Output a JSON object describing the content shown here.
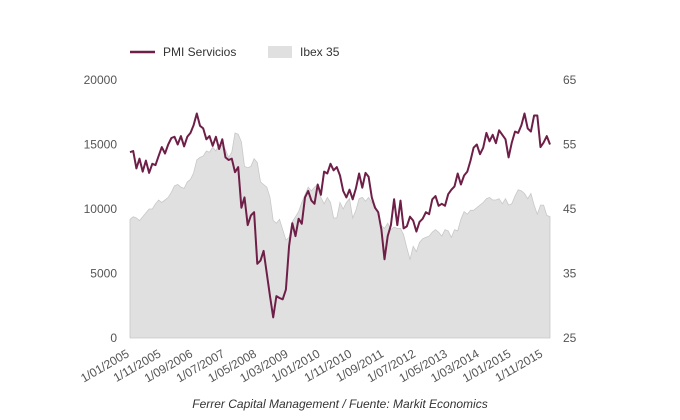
{
  "chart_data": {
    "type": "line",
    "title": "",
    "source_text": "Ferrer Capital Management / Fuente: Markit Economics",
    "legend": {
      "placement": "top-left"
    },
    "grid": false,
    "x_tick_labels": [
      "1/01/2005",
      "1/11/2005",
      "1/09/2006",
      "1/07/2007",
      "1/05/2008",
      "1/03/2009",
      "1/01/2010",
      "1/11/2010",
      "1/09/2011",
      "1/07/2012",
      "1/05/2013",
      "1/03/2014",
      "1/01/2015",
      "1/11/2015"
    ],
    "x_range": [
      "2005-01",
      "2015-12"
    ],
    "y_left": {
      "ticks": [
        "0",
        "5000",
        "10000",
        "15000",
        "20000"
      ],
      "range": [
        0,
        20000
      ]
    },
    "y_right": {
      "ticks": [
        "25",
        "35",
        "45",
        "55",
        "65"
      ],
      "range": [
        25,
        65
      ]
    },
    "colors": {
      "pmi": "#6e1f47",
      "ibex_fill": "#e0e0e0",
      "ibex_line": "#c8c8c8"
    },
    "series": [
      {
        "name": "PMI Servicios",
        "axis": "right",
        "style": "line",
        "points": [
          [
            "2005-01",
            53.8
          ],
          [
            "2005-02",
            54.0
          ],
          [
            "2005-03",
            51.3
          ],
          [
            "2005-04",
            52.8
          ],
          [
            "2005-05",
            50.8
          ],
          [
            "2005-06",
            52.5
          ],
          [
            "2005-07",
            50.6
          ],
          [
            "2005-08",
            52.0
          ],
          [
            "2005-09",
            51.8
          ],
          [
            "2005-10",
            53.2
          ],
          [
            "2005-11",
            54.6
          ],
          [
            "2005-12",
            53.6
          ],
          [
            "2006-01",
            55.0
          ],
          [
            "2006-02",
            56.0
          ],
          [
            "2006-03",
            56.2
          ],
          [
            "2006-04",
            55.0
          ],
          [
            "2006-05",
            56.3
          ],
          [
            "2006-06",
            54.7
          ],
          [
            "2006-07",
            56.2
          ],
          [
            "2006-08",
            56.8
          ],
          [
            "2006-09",
            58.0
          ],
          [
            "2006-10",
            59.8
          ],
          [
            "2006-11",
            57.9
          ],
          [
            "2006-12",
            57.5
          ],
          [
            "2007-01",
            55.8
          ],
          [
            "2007-02",
            56.3
          ],
          [
            "2007-03",
            54.8
          ],
          [
            "2007-04",
            56.2
          ],
          [
            "2007-05",
            54.3
          ],
          [
            "2007-06",
            55.8
          ],
          [
            "2007-07",
            53.0
          ],
          [
            "2007-08",
            52.6
          ],
          [
            "2007-09",
            52.8
          ],
          [
            "2007-10",
            50.7
          ],
          [
            "2007-11",
            51.5
          ],
          [
            "2007-12",
            45.2
          ],
          [
            "2008-01",
            46.8
          ],
          [
            "2008-02",
            42.5
          ],
          [
            "2008-03",
            44.0
          ],
          [
            "2008-04",
            44.5
          ],
          [
            "2008-05",
            36.5
          ],
          [
            "2008-06",
            37.0
          ],
          [
            "2008-07",
            38.5
          ],
          [
            "2008-08",
            35.0
          ],
          [
            "2008-09",
            31.5
          ],
          [
            "2008-10",
            28.2
          ],
          [
            "2008-11",
            31.5
          ],
          [
            "2008-12",
            31.2
          ],
          [
            "2009-01",
            31.0
          ],
          [
            "2009-02",
            32.5
          ],
          [
            "2009-03",
            39.3
          ],
          [
            "2009-04",
            42.8
          ],
          [
            "2009-05",
            40.8
          ],
          [
            "2009-06",
            43.5
          ],
          [
            "2009-07",
            42.7
          ],
          [
            "2009-08",
            46.8
          ],
          [
            "2009-09",
            47.8
          ],
          [
            "2009-10",
            46.3
          ],
          [
            "2009-11",
            45.8
          ],
          [
            "2009-12",
            48.8
          ],
          [
            "2010-01",
            47.2
          ],
          [
            "2010-02",
            50.8
          ],
          [
            "2010-03",
            50.5
          ],
          [
            "2010-04",
            52.0
          ],
          [
            "2010-05",
            51.0
          ],
          [
            "2010-06",
            51.5
          ],
          [
            "2010-07",
            50.2
          ],
          [
            "2010-08",
            47.8
          ],
          [
            "2010-09",
            46.8
          ],
          [
            "2010-10",
            48.0
          ],
          [
            "2010-11",
            46.5
          ],
          [
            "2010-12",
            48.2
          ],
          [
            "2011-01",
            50.5
          ],
          [
            "2011-02",
            48.3
          ],
          [
            "2011-03",
            50.6
          ],
          [
            "2011-04",
            50.0
          ],
          [
            "2011-05",
            46.8
          ],
          [
            "2011-06",
            45.2
          ],
          [
            "2011-07",
            44.5
          ],
          [
            "2011-08",
            41.8
          ],
          [
            "2011-09",
            37.2
          ],
          [
            "2011-10",
            40.8
          ],
          [
            "2011-11",
            42.5
          ],
          [
            "2011-12",
            46.5
          ],
          [
            "2012-01",
            42.5
          ],
          [
            "2012-02",
            46.3
          ],
          [
            "2012-03",
            42.0
          ],
          [
            "2012-04",
            42.3
          ],
          [
            "2012-05",
            43.8
          ],
          [
            "2012-06",
            43.2
          ],
          [
            "2012-07",
            41.5
          ],
          [
            "2012-08",
            43.0
          ],
          [
            "2012-09",
            43.5
          ],
          [
            "2012-10",
            44.5
          ],
          [
            "2012-11",
            44.2
          ],
          [
            "2012-12",
            46.5
          ],
          [
            "2013-01",
            47.0
          ],
          [
            "2013-02",
            45.5
          ],
          [
            "2013-03",
            45.8
          ],
          [
            "2013-04",
            45.5
          ],
          [
            "2013-05",
            47.3
          ],
          [
            "2013-06",
            48.0
          ],
          [
            "2013-07",
            48.5
          ],
          [
            "2013-08",
            50.5
          ],
          [
            "2013-09",
            48.8
          ],
          [
            "2013-10",
            50.2
          ],
          [
            "2013-11",
            50.8
          ],
          [
            "2013-12",
            52.5
          ],
          [
            "2014-01",
            54.5
          ],
          [
            "2014-02",
            55.0
          ],
          [
            "2014-03",
            53.5
          ],
          [
            "2014-04",
            54.5
          ],
          [
            "2014-05",
            56.8
          ],
          [
            "2014-06",
            55.5
          ],
          [
            "2014-07",
            56.5
          ],
          [
            "2014-08",
            55.2
          ],
          [
            "2014-09",
            57.2
          ],
          [
            "2014-10",
            56.5
          ],
          [
            "2014-11",
            55.8
          ],
          [
            "2014-12",
            53.0
          ],
          [
            "2015-01",
            55.3
          ],
          [
            "2015-02",
            57.0
          ],
          [
            "2015-03",
            56.8
          ],
          [
            "2015-04",
            58.0
          ],
          [
            "2015-05",
            59.8
          ],
          [
            "2015-06",
            57.5
          ],
          [
            "2015-07",
            57.0
          ],
          [
            "2015-08",
            59.5
          ],
          [
            "2015-09",
            59.5
          ],
          [
            "2015-10",
            54.6
          ],
          [
            "2015-11",
            55.3
          ],
          [
            "2015-12",
            56.3
          ],
          [
            "2016-01",
            55.0
          ]
        ]
      },
      {
        "name": "Ibex 35",
        "axis": "left",
        "style": "area",
        "points": [
          [
            "2005-01",
            9200
          ],
          [
            "2005-02",
            9400
          ],
          [
            "2005-03",
            9300
          ],
          [
            "2005-04",
            9100
          ],
          [
            "2005-05",
            9400
          ],
          [
            "2005-06",
            9700
          ],
          [
            "2005-07",
            10000
          ],
          [
            "2005-08",
            10000
          ],
          [
            "2005-09",
            10400
          ],
          [
            "2005-10",
            10700
          ],
          [
            "2005-11",
            10500
          ],
          [
            "2005-12",
            10700
          ],
          [
            "2006-01",
            10900
          ],
          [
            "2006-02",
            11300
          ],
          [
            "2006-03",
            11800
          ],
          [
            "2006-04",
            11900
          ],
          [
            "2006-05",
            11700
          ],
          [
            "2006-06",
            11600
          ],
          [
            "2006-07",
            12100
          ],
          [
            "2006-08",
            12300
          ],
          [
            "2006-09",
            12800
          ],
          [
            "2006-10",
            13800
          ],
          [
            "2006-11",
            14000
          ],
          [
            "2006-12",
            14100
          ],
          [
            "2007-01",
            14500
          ],
          [
            "2007-02",
            14400
          ],
          [
            "2007-03",
            14800
          ],
          [
            "2007-04",
            14500
          ],
          [
            "2007-05",
            15000
          ],
          [
            "2007-06",
            14900
          ],
          [
            "2007-07",
            14600
          ],
          [
            "2007-08",
            14000
          ],
          [
            "2007-09",
            14400
          ],
          [
            "2007-10",
            15900
          ],
          [
            "2007-11",
            15800
          ],
          [
            "2007-12",
            15200
          ],
          [
            "2008-01",
            13300
          ],
          [
            "2008-02",
            13200
          ],
          [
            "2008-03",
            13300
          ],
          [
            "2008-04",
            13900
          ],
          [
            "2008-05",
            13600
          ],
          [
            "2008-06",
            12100
          ],
          [
            "2008-07",
            11900
          ],
          [
            "2008-08",
            11700
          ],
          [
            "2008-09",
            10900
          ],
          [
            "2008-10",
            9100
          ],
          [
            "2008-11",
            8900
          ],
          [
            "2008-12",
            9200
          ],
          [
            "2009-01",
            8400
          ],
          [
            "2009-02",
            7600
          ],
          [
            "2009-03",
            7800
          ],
          [
            "2009-04",
            9000
          ],
          [
            "2009-05",
            9400
          ],
          [
            "2009-06",
            9800
          ],
          [
            "2009-07",
            10500
          ],
          [
            "2009-08",
            11100
          ],
          [
            "2009-09",
            11700
          ],
          [
            "2009-10",
            11400
          ],
          [
            "2009-11",
            11700
          ],
          [
            "2009-12",
            11900
          ],
          [
            "2010-01",
            10900
          ],
          [
            "2010-02",
            10400
          ],
          [
            "2010-03",
            10900
          ],
          [
            "2010-04",
            10500
          ],
          [
            "2010-05",
            9300
          ],
          [
            "2010-06",
            9300
          ],
          [
            "2010-07",
            10500
          ],
          [
            "2010-08",
            10000
          ],
          [
            "2010-09",
            10500
          ],
          [
            "2010-10",
            10800
          ],
          [
            "2010-11",
            9300
          ],
          [
            "2010-12",
            9900
          ],
          [
            "2011-01",
            10800
          ],
          [
            "2011-02",
            10900
          ],
          [
            "2011-03",
            10600
          ],
          [
            "2011-04",
            10900
          ],
          [
            "2011-05",
            10500
          ],
          [
            "2011-06",
            10300
          ],
          [
            "2011-07",
            9600
          ],
          [
            "2011-08",
            8700
          ],
          [
            "2011-09",
            8500
          ],
          [
            "2011-10",
            8900
          ],
          [
            "2011-11",
            8400
          ],
          [
            "2011-12",
            8600
          ],
          [
            "2012-01",
            8500
          ],
          [
            "2012-02",
            8500
          ],
          [
            "2012-03",
            8000
          ],
          [
            "2012-04",
            7000
          ],
          [
            "2012-05",
            6100
          ],
          [
            "2012-06",
            7100
          ],
          [
            "2012-07",
            6700
          ],
          [
            "2012-08",
            7400
          ],
          [
            "2012-09",
            7700
          ],
          [
            "2012-10",
            7800
          ],
          [
            "2012-11",
            7900
          ],
          [
            "2012-12",
            8200
          ],
          [
            "2013-01",
            8400
          ],
          [
            "2013-02",
            8200
          ],
          [
            "2013-03",
            7900
          ],
          [
            "2013-04",
            8400
          ],
          [
            "2013-05",
            8300
          ],
          [
            "2013-06",
            7800
          ],
          [
            "2013-07",
            8400
          ],
          [
            "2013-08",
            8300
          ],
          [
            "2013-09",
            9200
          ],
          [
            "2013-10",
            9800
          ],
          [
            "2013-11",
            9600
          ],
          [
            "2013-12",
            9900
          ],
          [
            "2014-01",
            9900
          ],
          [
            "2014-02",
            10100
          ],
          [
            "2014-03",
            10300
          ],
          [
            "2014-04",
            10500
          ],
          [
            "2014-05",
            10800
          ],
          [
            "2014-06",
            10900
          ],
          [
            "2014-07",
            10700
          ],
          [
            "2014-08",
            10700
          ],
          [
            "2014-09",
            10800
          ],
          [
            "2014-10",
            10400
          ],
          [
            "2014-11",
            10800
          ],
          [
            "2014-12",
            10300
          ],
          [
            "2015-01",
            10400
          ],
          [
            "2015-02",
            11000
          ],
          [
            "2015-03",
            11500
          ],
          [
            "2015-04",
            11400
          ],
          [
            "2015-05",
            11200
          ],
          [
            "2015-06",
            10800
          ],
          [
            "2015-07",
            11200
          ],
          [
            "2015-08",
            10300
          ],
          [
            "2015-09",
            9600
          ],
          [
            "2015-10",
            10300
          ],
          [
            "2015-11",
            10300
          ],
          [
            "2015-12",
            9500
          ],
          [
            "2016-01",
            9400
          ]
        ]
      }
    ]
  }
}
